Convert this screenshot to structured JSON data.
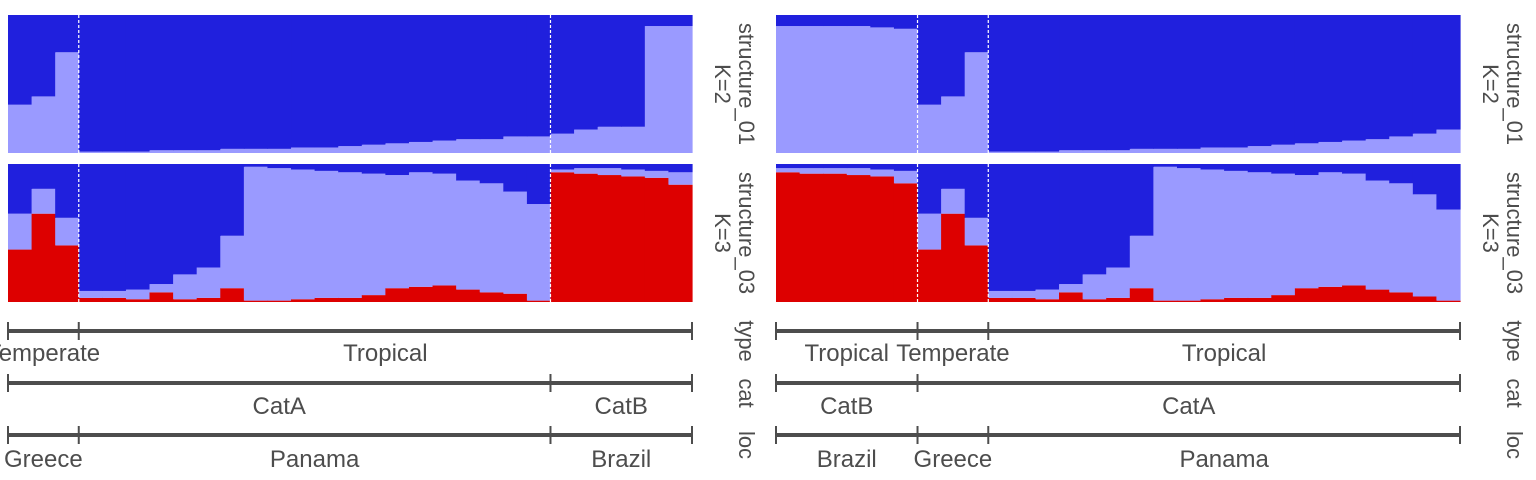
{
  "chart_data": {
    "type": "bar",
    "subtype": "stacked-proportion (admixture plot)",
    "colors": {
      "cluster1": "#2020dd",
      "cluster2": "#9a9aff",
      "cluster3": "#dd0000"
    },
    "rows": [
      {
        "strip_lines": [
          "structure_01",
          "K=2"
        ]
      },
      {
        "strip_lines": [
          "structure_03",
          "K=3"
        ]
      }
    ],
    "group_rows": [
      "type",
      "cat",
      "loc"
    ],
    "ylim": [
      0,
      1
    ],
    "panels": [
      {
        "n_samples": 29,
        "k2": {
          "cluster2": [
            0.35,
            0.41,
            0.73,
            0.01,
            0.01,
            0.01,
            0.02,
            0.02,
            0.02,
            0.03,
            0.03,
            0.03,
            0.04,
            0.04,
            0.05,
            0.06,
            0.07,
            0.08,
            0.09,
            0.1,
            0.1,
            0.12,
            0.12,
            0.14,
            0.17,
            0.19,
            0.19,
            0.92,
            0.92
          ],
          "cluster1": [
            0.65,
            0.59,
            0.27,
            0.99,
            0.99,
            0.99,
            0.98,
            0.98,
            0.98,
            0.97,
            0.97,
            0.97,
            0.96,
            0.96,
            0.95,
            0.94,
            0.93,
            0.92,
            0.91,
            0.9,
            0.9,
            0.88,
            0.88,
            0.86,
            0.83,
            0.81,
            0.81,
            0.08,
            0.08
          ]
        },
        "k3": {
          "cluster3": [
            0.38,
            0.64,
            0.41,
            0.03,
            0.03,
            0.02,
            0.07,
            0.02,
            0.03,
            0.1,
            0.01,
            0.01,
            0.02,
            0.03,
            0.03,
            0.05,
            0.1,
            0.11,
            0.12,
            0.09,
            0.07,
            0.06,
            0.01,
            0.94,
            0.93,
            0.92,
            0.91,
            0.9,
            0.85
          ],
          "cluster2": [
            0.26,
            0.18,
            0.2,
            0.05,
            0.05,
            0.07,
            0.06,
            0.18,
            0.22,
            0.38,
            0.97,
            0.96,
            0.94,
            0.92,
            0.91,
            0.88,
            0.82,
            0.83,
            0.81,
            0.79,
            0.79,
            0.74,
            0.7,
            0.02,
            0.04,
            0.05,
            0.05,
            0.05,
            0.09
          ],
          "cluster1": [
            0.36,
            0.18,
            0.39,
            0.92,
            0.92,
            0.91,
            0.87,
            0.8,
            0.75,
            0.52,
            0.02,
            0.03,
            0.04,
            0.05,
            0.06,
            0.07,
            0.08,
            0.06,
            0.07,
            0.12,
            0.14,
            0.2,
            0.29,
            0.04,
            0.03,
            0.03,
            0.04,
            0.05,
            0.06
          ]
        },
        "dividers_after": [
          3,
          23
        ],
        "groups": {
          "type": [
            {
              "label": "Temperate",
              "from": 0,
              "to": 3
            },
            {
              "label": "Tropical",
              "from": 3,
              "to": 29
            }
          ],
          "cat": [
            {
              "label": "CatA",
              "from": 0,
              "to": 23
            },
            {
              "label": "CatB",
              "from": 23,
              "to": 29
            }
          ],
          "loc": [
            {
              "label": "Greece",
              "from": 0,
              "to": 3
            },
            {
              "label": "Panama",
              "from": 3,
              "to": 23
            },
            {
              "label": "Brazil",
              "from": 23,
              "to": 29
            }
          ]
        }
      },
      {
        "n_samples": 29,
        "k2": {
          "cluster2": [
            0.92,
            0.92,
            0.92,
            0.92,
            0.91,
            0.9,
            0.35,
            0.41,
            0.73,
            0.01,
            0.01,
            0.01,
            0.02,
            0.02,
            0.02,
            0.03,
            0.03,
            0.03,
            0.04,
            0.04,
            0.05,
            0.06,
            0.07,
            0.08,
            0.09,
            0.1,
            0.12,
            0.14,
            0.17
          ],
          "cluster1": [
            0.08,
            0.08,
            0.08,
            0.08,
            0.09,
            0.1,
            0.65,
            0.59,
            0.27,
            0.99,
            0.99,
            0.99,
            0.98,
            0.98,
            0.98,
            0.97,
            0.97,
            0.97,
            0.96,
            0.96,
            0.95,
            0.94,
            0.93,
            0.92,
            0.91,
            0.9,
            0.88,
            0.86,
            0.83
          ]
        },
        "k3": {
          "cluster3": [
            0.94,
            0.93,
            0.93,
            0.92,
            0.91,
            0.86,
            0.38,
            0.64,
            0.41,
            0.03,
            0.03,
            0.02,
            0.07,
            0.02,
            0.03,
            0.1,
            0.01,
            0.01,
            0.02,
            0.03,
            0.03,
            0.05,
            0.1,
            0.11,
            0.12,
            0.09,
            0.07,
            0.04,
            0.01
          ],
          "cluster2": [
            0.03,
            0.04,
            0.04,
            0.05,
            0.05,
            0.09,
            0.26,
            0.18,
            0.2,
            0.05,
            0.05,
            0.07,
            0.06,
            0.18,
            0.22,
            0.38,
            0.97,
            0.96,
            0.94,
            0.92,
            0.91,
            0.88,
            0.82,
            0.83,
            0.81,
            0.79,
            0.79,
            0.74,
            0.66
          ],
          "cluster1": [
            0.03,
            0.03,
            0.03,
            0.03,
            0.04,
            0.05,
            0.36,
            0.18,
            0.39,
            0.92,
            0.92,
            0.91,
            0.87,
            0.8,
            0.75,
            0.52,
            0.02,
            0.03,
            0.04,
            0.05,
            0.06,
            0.07,
            0.08,
            0.06,
            0.07,
            0.12,
            0.14,
            0.22,
            0.33
          ]
        },
        "dividers_after": [
          6,
          9
        ],
        "groups": {
          "type": [
            {
              "label": "Tropical",
              "from": 0,
              "to": 6
            },
            {
              "label": "Temperate",
              "from": 6,
              "to": 9
            },
            {
              "label": "Tropical",
              "from": 9,
              "to": 29
            }
          ],
          "cat": [
            {
              "label": "CatB",
              "from": 0,
              "to": 6
            },
            {
              "label": "CatA",
              "from": 6,
              "to": 29
            }
          ],
          "loc": [
            {
              "label": "Brazil",
              "from": 0,
              "to": 6
            },
            {
              "label": "Greece",
              "from": 6,
              "to": 9
            },
            {
              "label": "Panama",
              "from": 9,
              "to": 29
            }
          ]
        }
      }
    ]
  }
}
